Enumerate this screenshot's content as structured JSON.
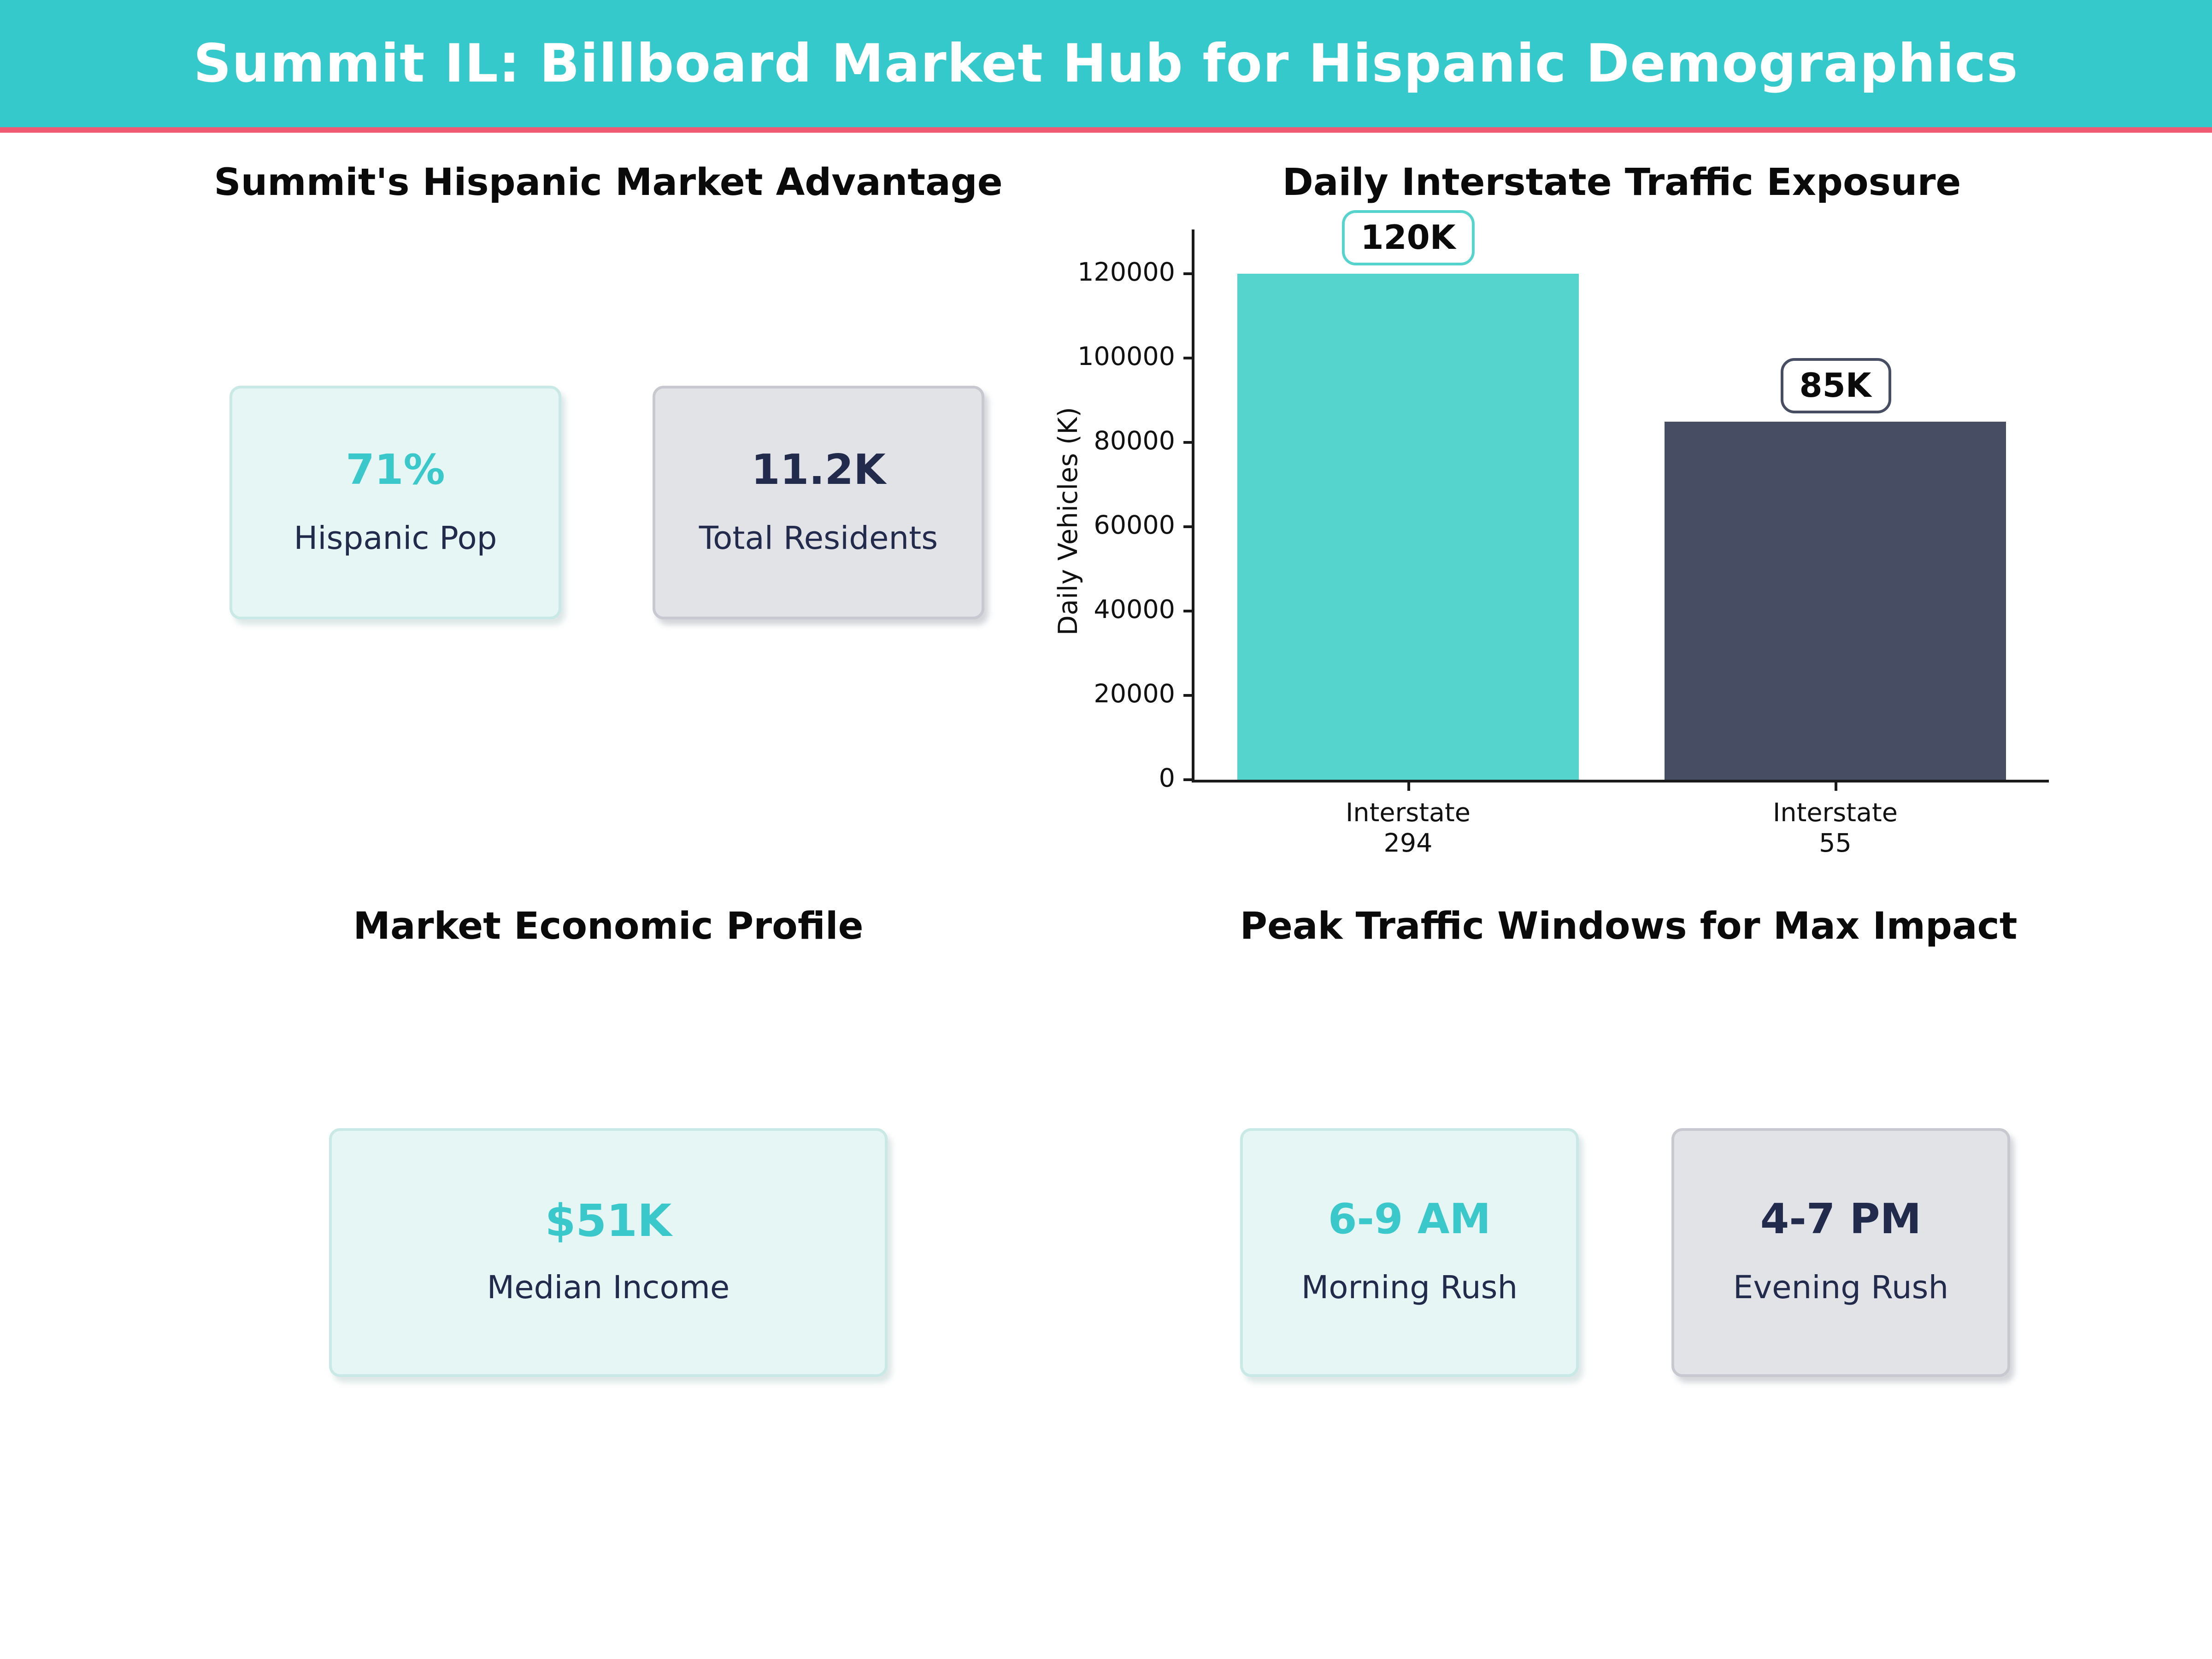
{
  "header": {
    "title": "Summit IL: Billboard Market Hub for Hispanic Demographics"
  },
  "colors": {
    "header_bg": "#35C9CC",
    "accent_pink": "#F05A72",
    "teal_text": "#3BC8CA",
    "navy_text": "#232B4D",
    "bar_teal": "#55D3CD",
    "bar_slate": "#474E63",
    "mint_card_bg": "#E6F6F4",
    "mint_card_border": "#C8E9E6",
    "gray_card_bg": "#E2E3E7",
    "gray_card_border": "#C7C8D0"
  },
  "sections": {
    "market_advantage": {
      "title": "Summit's Hispanic Market Advantage",
      "cards": [
        {
          "value": "71%",
          "label": "Hispanic Pop",
          "style": "mint"
        },
        {
          "value": "11.2K",
          "label": "Total Residents",
          "style": "gray"
        }
      ]
    },
    "traffic_chart": {
      "title": "Daily Interstate Traffic Exposure"
    },
    "economic_profile": {
      "title": "Market Economic Profile",
      "cards": [
        {
          "value": "$51K",
          "label": "Median Income",
          "style": "mint"
        }
      ]
    },
    "peak_windows": {
      "title": "Peak Traffic Windows for Max Impact",
      "cards": [
        {
          "value": "6-9 AM",
          "label": "Morning Rush",
          "style": "mint"
        },
        {
          "value": "4-7 PM",
          "label": "Evening Rush",
          "style": "gray"
        }
      ]
    }
  },
  "chart_data": {
    "type": "bar",
    "title": "Daily Interstate Traffic Exposure",
    "categories": [
      "Interstate\n294",
      "Interstate\n55"
    ],
    "values": [
      120000,
      85000
    ],
    "bar_labels": [
      "120K",
      "85K"
    ],
    "bar_colors": [
      "#55D3CD",
      "#474E63"
    ],
    "xlabel": "",
    "ylabel": "Daily Vehicles (K)",
    "yticks": [
      0,
      20000,
      40000,
      60000,
      80000,
      100000,
      120000
    ],
    "ylim": [
      0,
      130000
    ],
    "grid": false,
    "legend": false
  }
}
